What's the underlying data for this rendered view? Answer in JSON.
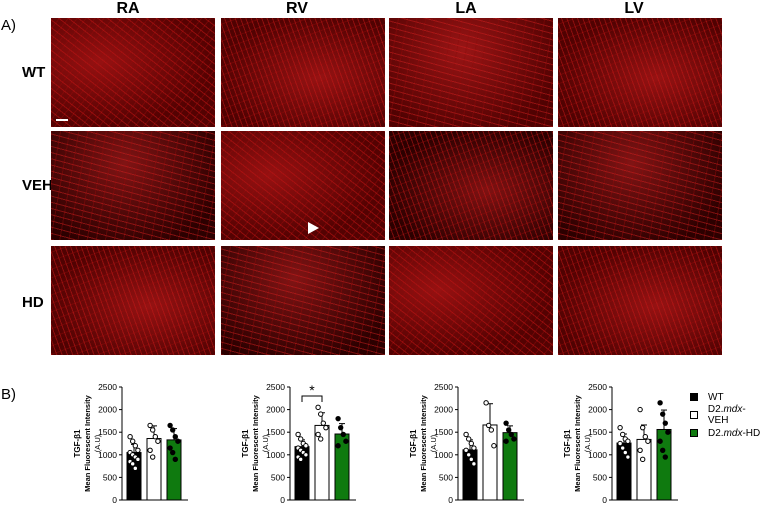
{
  "figure": {
    "panel_a": "A)",
    "panel_b": "B)",
    "columns": [
      "RA",
      "RV",
      "LA",
      "LV"
    ],
    "rows": [
      "WT",
      "VEH",
      "HD"
    ]
  },
  "legend": [
    {
      "label_pre": "WT",
      "label_mdx": "",
      "label_post": "",
      "color": "#000000"
    },
    {
      "label_pre": "D2.",
      "label_mdx": "mdx",
      "label_post": "-VEH",
      "color": "#ffffff"
    },
    {
      "label_pre": "D2.",
      "label_mdx": "mdx",
      "label_post": "-HD",
      "color": "#0f7a0f"
    }
  ],
  "chart_data": [
    {
      "type": "bar",
      "panel": "RA",
      "ylabel_line1": "TGF-β1",
      "ylabel_line2": "Mean Fluorescent Intensity",
      "ylabel_line3": "(A.U)",
      "ylim": [
        0,
        2500
      ],
      "yticks": [
        "0",
        "500",
        "1000",
        "1500",
        "2000",
        "2500"
      ],
      "categories": [
        "WT",
        "D2.mdx-VEH",
        "D2.mdx-HD"
      ],
      "values": [
        1050,
        1360,
        1330
      ],
      "errors": [
        180,
        280,
        250
      ],
      "points": [
        [
          1400,
          1300,
          1200,
          1100,
          1050,
          1000,
          950,
          900,
          850,
          800,
          700
        ],
        [
          1650,
          1550,
          1400,
          1300,
          1100,
          950
        ],
        [
          1650,
          1550,
          1400,
          1300,
          1150,
          1050,
          900
        ]
      ],
      "significance": ""
    },
    {
      "type": "bar",
      "panel": "RV",
      "ylabel_line1": "TGF-β1",
      "ylabel_line2": "Mean Fluorescent Intensity",
      "ylabel_line3": "(A.U)",
      "ylim": [
        0,
        2500
      ],
      "yticks": [
        "0",
        "500",
        "1000",
        "1500",
        "2000",
        "2500"
      ],
      "categories": [
        "WT",
        "D2.mdx-VEH",
        "D2.mdx-HD"
      ],
      "values": [
        1180,
        1650,
        1460
      ],
      "errors": [
        150,
        280,
        230
      ],
      "points": [
        [
          1450,
          1350,
          1250,
          1200,
          1150,
          1100,
          1050,
          1000,
          950,
          900
        ],
        [
          2050,
          1900,
          1700,
          1600,
          1450,
          1350
        ],
        [
          1800,
          1600,
          1450,
          1300,
          1200
        ]
      ],
      "significance": "*"
    },
    {
      "type": "bar",
      "panel": "LA",
      "ylabel_line1": "TGF-β1",
      "ylabel_line2": "Mean Fluorescent Intensity",
      "ylabel_line3": "(A.U)",
      "ylim": [
        0,
        2500
      ],
      "yticks": [
        "0",
        "500",
        "1000",
        "1500",
        "2000",
        "2500"
      ],
      "categories": [
        "WT",
        "D2.mdx-VEH",
        "D2.mdx-HD"
      ],
      "values": [
        1110,
        1660,
        1490
      ],
      "errors": [
        220,
        470,
        150
      ],
      "points": [
        [
          1450,
          1350,
          1250,
          1150,
          1100,
          1000,
          900,
          800
        ],
        [
          2150,
          1650,
          1550,
          1200
        ],
        [
          1700,
          1550,
          1450,
          1350,
          1300
        ]
      ],
      "significance": ""
    },
    {
      "type": "bar",
      "panel": "LV",
      "ylabel_line1": "TGF-β1",
      "ylabel_line2": "Mean Fluorescent Intensity",
      "ylabel_line3": "(A.U)",
      "ylim": [
        0,
        2500
      ],
      "yticks": [
        "0",
        "500",
        "1000",
        "1500",
        "2000",
        "2500"
      ],
      "categories": [
        "WT",
        "D2.mdx-VEH",
        "D2.mdx-HD"
      ],
      "values": [
        1260,
        1340,
        1560
      ],
      "errors": [
        200,
        320,
        430
      ],
      "points": [
        [
          1600,
          1450,
          1350,
          1300,
          1250,
          1150,
          1050,
          950
        ],
        [
          2000,
          1600,
          1400,
          1300,
          1100,
          900
        ],
        [
          2150,
          1900,
          1700,
          1500,
          1300,
          1100,
          950
        ]
      ],
      "significance": ""
    }
  ]
}
